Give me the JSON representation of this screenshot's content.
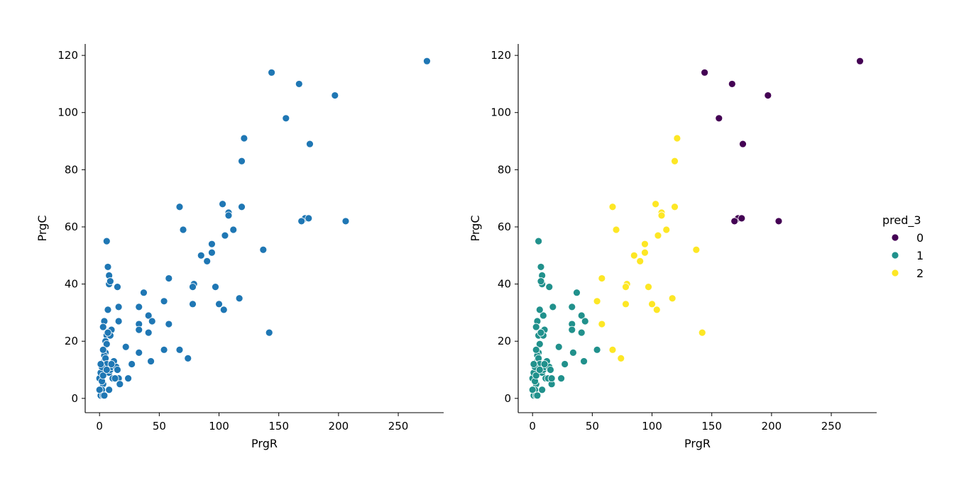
{
  "chart_data": [
    {
      "type": "scatter",
      "xlabel": "PrgR",
      "ylabel": "PrgC",
      "xlim": [
        -12,
        288
      ],
      "ylim": [
        -5,
        124
      ],
      "xticks": [
        0,
        50,
        100,
        150,
        200,
        250
      ],
      "yticks": [
        0,
        20,
        40,
        60,
        80,
        100,
        120
      ],
      "color": "#1f77b4",
      "grid": false,
      "series": [
        {
          "x": [
            274,
            144,
            167,
            197,
            156,
            176,
            206,
            172,
            175,
            169,
            121,
            119,
            103,
            108,
            108,
            119,
            105,
            112,
            137,
            142,
            67,
            70,
            58,
            94,
            85,
            94,
            90,
            97,
            79,
            78,
            78,
            100,
            104,
            117,
            54,
            58,
            67,
            74,
            37,
            33,
            41,
            44,
            41,
            33,
            33,
            33,
            43,
            54,
            22,
            27,
            24,
            15,
            16,
            16,
            6,
            7,
            8,
            8,
            7,
            16,
            17,
            9,
            6,
            4,
            3,
            5,
            10,
            9,
            7,
            6,
            5,
            4,
            3,
            2,
            2,
            1,
            1,
            2,
            3,
            4,
            5,
            6,
            8,
            9,
            10,
            11,
            12,
            13,
            14,
            15,
            2,
            1,
            0,
            0,
            1,
            2,
            3,
            4,
            1,
            2,
            8,
            3,
            6,
            10
          ],
          "y": [
            118,
            114,
            110,
            106,
            98,
            89,
            62,
            63,
            63,
            62,
            91,
            83,
            68,
            65,
            64,
            67,
            57,
            59,
            52,
            23,
            67,
            59,
            42,
            54,
            50,
            51,
            48,
            39,
            40,
            39,
            33,
            33,
            31,
            35,
            34,
            26,
            17,
            14,
            37,
            32,
            29,
            27,
            23,
            26,
            24,
            16,
            13,
            17,
            18,
            12,
            7,
            39,
            32,
            27,
            55,
            46,
            43,
            40,
            31,
            7,
            5,
            41,
            22,
            27,
            25,
            20,
            24,
            22,
            23,
            19,
            16,
            15,
            17,
            12,
            10,
            8,
            7,
            6,
            5,
            13,
            14,
            12,
            9,
            10,
            11,
            7,
            13,
            7,
            11,
            10,
            3,
            1,
            3,
            7,
            9,
            11,
            1,
            1,
            12,
            6,
            3,
            8,
            10,
            12
          ]
        }
      ]
    },
    {
      "type": "scatter",
      "xlabel": "PrgR",
      "ylabel": "PrgC",
      "xlim": [
        -12,
        288
      ],
      "ylim": [
        -5,
        124
      ],
      "xticks": [
        0,
        50,
        100,
        150,
        200,
        250
      ],
      "yticks": [
        0,
        20,
        40,
        60,
        80,
        100,
        120
      ],
      "grid": false,
      "legend": {
        "title": "pred_3",
        "placement": "right",
        "entries": [
          "0",
          "1",
          "2"
        ]
      },
      "colors": {
        "0": "#440154",
        "1": "#21918c",
        "2": "#fde725"
      },
      "series": [
        {
          "name": "0",
          "x": [
            274,
            144,
            167,
            197,
            156,
            176,
            206,
            172,
            175,
            169
          ],
          "y": [
            118,
            114,
            110,
            106,
            98,
            89,
            62,
            63,
            63,
            62
          ]
        },
        {
          "name": "1",
          "x": [
            5,
            7,
            8,
            8,
            7,
            14,
            17,
            9,
            6,
            4,
            3,
            5,
            10,
            9,
            7,
            6,
            5,
            4,
            3,
            2,
            2,
            1,
            1,
            2,
            3,
            4,
            5,
            6,
            8,
            9,
            10,
            11,
            12,
            13,
            14,
            15,
            2,
            1,
            0,
            0,
            1,
            2,
            3,
            4,
            1,
            2,
            8,
            3,
            6,
            10,
            37,
            33,
            41,
            44,
            41,
            33,
            33,
            34,
            43,
            54,
            22,
            27,
            24,
            16,
            16
          ],
          "y": [
            55,
            46,
            43,
            40,
            41,
            39,
            32,
            29,
            31,
            27,
            25,
            22,
            24,
            22,
            23,
            19,
            16,
            15,
            17,
            12,
            10,
            8,
            7,
            6,
            5,
            13,
            14,
            12,
            9,
            10,
            11,
            7,
            13,
            7,
            11,
            10,
            3,
            1,
            3,
            7,
            9,
            11,
            1,
            1,
            12,
            6,
            3,
            8,
            10,
            12,
            37,
            32,
            29,
            27,
            23,
            26,
            24,
            16,
            13,
            17,
            18,
            12,
            7,
            5,
            7
          ]
        },
        {
          "name": "2",
          "x": [
            121,
            119,
            103,
            108,
            108,
            119,
            105,
            112,
            137,
            142,
            67,
            70,
            58,
            94,
            85,
            94,
            90,
            97,
            79,
            78,
            78,
            100,
            104,
            117,
            54,
            58,
            67,
            74
          ],
          "y": [
            91,
            83,
            68,
            65,
            64,
            67,
            57,
            59,
            52,
            23,
            67,
            59,
            42,
            54,
            50,
            51,
            48,
            39,
            40,
            39,
            33,
            33,
            31,
            35,
            34,
            26,
            17,
            14
          ]
        }
      ]
    }
  ]
}
